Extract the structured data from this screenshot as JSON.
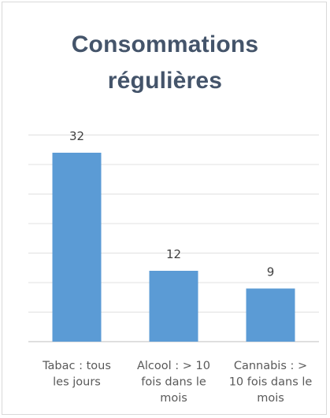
{
  "chart_data": {
    "type": "bar",
    "title": "Consommations régulières",
    "title_lines": [
      "Consommations",
      "régulières"
    ],
    "categories": [
      "Tabac : tous les jours",
      "Alcool : > 10 fois dans le mois",
      "Cannabis : > 10 fois dans le mois"
    ],
    "category_lines": [
      [
        "Tabac : tous",
        "les jours"
      ],
      [
        "Alcool : > 10",
        "fois dans le",
        "mois"
      ],
      [
        "Cannabis : >",
        "10 fois dans le",
        "mois"
      ]
    ],
    "values": [
      32,
      12,
      9
    ],
    "data_labels": [
      "32",
      "12",
      "9"
    ],
    "ylim": [
      0,
      35
    ],
    "gridlines": [
      5,
      10,
      15,
      20,
      25,
      30,
      35
    ],
    "grid": true,
    "legend": "none",
    "colors": {
      "bar": "#5b9bd5",
      "grid": "#e0e0e0",
      "axis": "#bfbfbf",
      "title": "#44546a"
    }
  }
}
